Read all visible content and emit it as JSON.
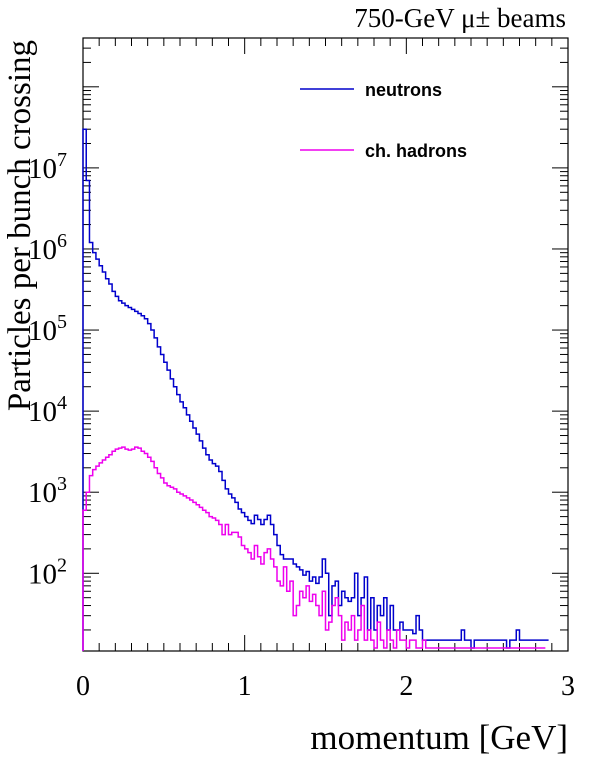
{
  "chart_data": {
    "type": "line",
    "subtitle": "750-GeV μ± beams",
    "xlabel": "momentum [GeV]",
    "ylabel": "Particles per bunch crossing",
    "xlim": [
      0,
      3
    ],
    "ylim": [
      11,
      400000000
    ],
    "yscale": "log",
    "x_ticks": [
      "0",
      "1",
      "2",
      "3"
    ],
    "y_ticks": [
      {
        "value": 100,
        "base": "10",
        "exp": "2"
      },
      {
        "value": 1000,
        "base": "10",
        "exp": "3"
      },
      {
        "value": 10000,
        "base": "10",
        "exp": "4"
      },
      {
        "value": 100000,
        "base": "10",
        "exp": "5"
      },
      {
        "value": 1000000,
        "base": "10",
        "exp": "6"
      },
      {
        "value": 10000000,
        "base": "10",
        "exp": "7"
      }
    ],
    "legend_position": "top-right",
    "bin_width": 0.02,
    "series": [
      {
        "name": "neutrons",
        "color": "#0000cc",
        "values": [
          30000000,
          7000000,
          1200000,
          900000,
          750000,
          620000,
          520000,
          430000,
          370000,
          300000,
          260000,
          230000,
          215000,
          200000,
          190000,
          180000,
          170000,
          160000,
          150000,
          138000,
          120000,
          100000,
          80000,
          62000,
          50000,
          40000,
          32000,
          25000,
          20000,
          16000,
          13000,
          11000,
          9000,
          7500,
          6200,
          5200,
          4300,
          3500,
          2900,
          2500,
          2250,
          2100,
          1800,
          1400,
          1100,
          950,
          850,
          750,
          620,
          560,
          500,
          450,
          410,
          520,
          460,
          400,
          460,
          520,
          400,
          300,
          220,
          170,
          150,
          150,
          150,
          130,
          120,
          110,
          95,
          105,
          80,
          90,
          75,
          90,
          150,
          100,
          30,
          70,
          80,
          40,
          60,
          50,
          45,
          50,
          100,
          30,
          50,
          90,
          20,
          50,
          20,
          40,
          30,
          50,
          20,
          40,
          20,
          20,
          25,
          20,
          20,
          20,
          18,
          30,
          20,
          15,
          15,
          15,
          15,
          15,
          15,
          15,
          15,
          15,
          15,
          15,
          15,
          20,
          15,
          15,
          12,
          15,
          15,
          15,
          15,
          15,
          15,
          15,
          15,
          15,
          15,
          12,
          15,
          15,
          20,
          15,
          15,
          15,
          15,
          15,
          15,
          15,
          15,
          15
        ]
      },
      {
        "name": "ch. hadrons",
        "color": "#ee00ee",
        "values": [
          600,
          1000,
          1600,
          1900,
          2100,
          2300,
          2500,
          2700,
          2900,
          3200,
          3400,
          3500,
          3600,
          3400,
          3300,
          3400,
          3600,
          3500,
          3200,
          3000,
          2700,
          2400,
          2000,
          1700,
          1500,
          1300,
          1200,
          1150,
          1100,
          1000,
          950,
          900,
          850,
          800,
          750,
          700,
          650,
          600,
          560,
          500,
          480,
          450,
          400,
          300,
          400,
          300,
          320,
          320,
          280,
          220,
          200,
          180,
          150,
          220,
          160,
          130,
          180,
          200,
          150,
          120,
          80,
          70,
          120,
          60,
          80,
          30,
          40,
          60,
          50,
          70,
          45,
          55,
          40,
          30,
          60,
          20,
          25,
          40,
          50,
          30,
          15,
          25,
          20,
          30,
          15,
          20,
          40,
          15,
          20,
          15,
          12,
          25,
          15,
          12,
          20,
          15,
          12,
          20,
          15,
          15,
          12,
          15,
          15,
          12,
          12,
          15,
          12,
          12,
          12,
          12,
          12,
          12,
          12,
          12,
          12,
          12,
          12,
          12,
          12,
          12,
          12,
          12,
          12,
          12,
          12,
          12,
          12,
          12,
          12,
          12,
          12,
          12,
          12,
          12,
          12,
          12,
          12,
          12,
          12,
          12,
          12,
          12,
          12
        ]
      }
    ]
  }
}
